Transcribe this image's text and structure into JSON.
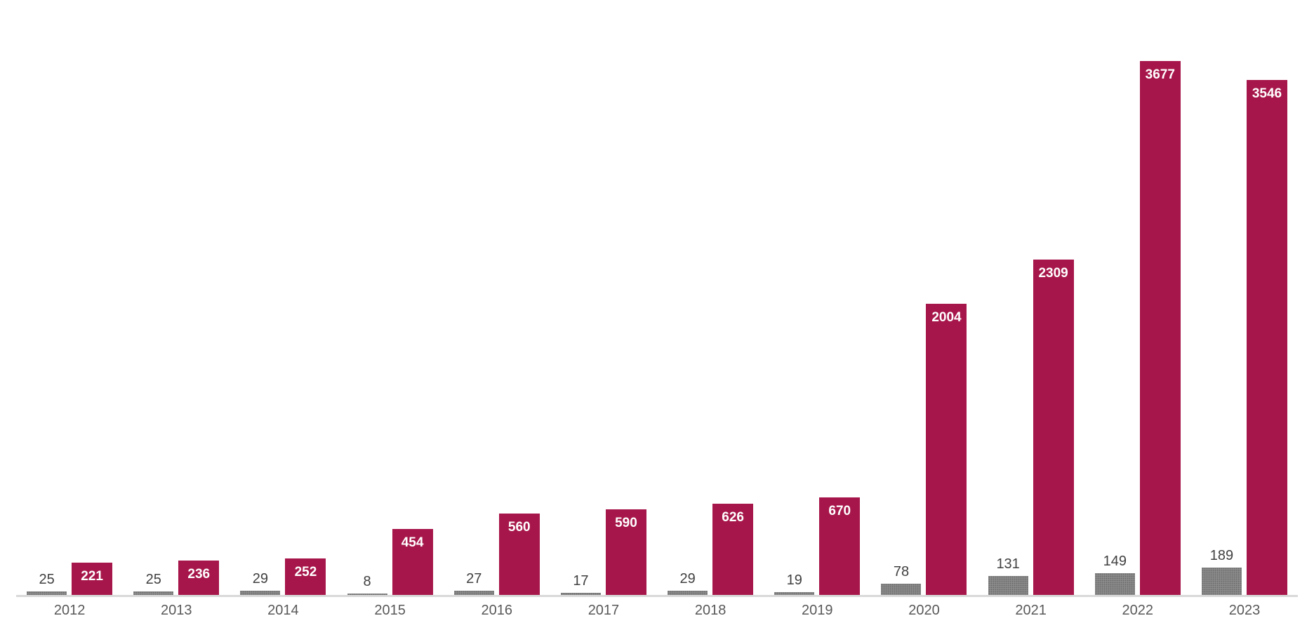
{
  "page": {
    "background_color": "#FFFFFF"
  },
  "chart_data": {
    "type": "bar",
    "title": "",
    "categories": [
      "2012",
      "2013",
      "2014",
      "2015",
      "2016",
      "2017",
      "2018",
      "2019",
      "2020",
      "2021",
      "2022",
      "2023"
    ],
    "series": [
      {
        "name": "gray",
        "color": "#8A8A8A",
        "label_color": "#404040",
        "label_position": "outside-end",
        "values": [
          25,
          25,
          29,
          8,
          27,
          17,
          29,
          19,
          78,
          131,
          149,
          189
        ]
      },
      {
        "name": "crimson",
        "color": "#A7164A",
        "label_color": "#FFFFFF",
        "label_position": "inside-end",
        "values": [
          221,
          236,
          252,
          454,
          560,
          590,
          626,
          670,
          2004,
          2309,
          3677,
          3546
        ]
      }
    ],
    "xlabel": "",
    "ylabel": "",
    "ylim": [
      0,
      3700
    ],
    "grid": false,
    "legend": false,
    "axis": {
      "baseline_color": "#D9D9D9",
      "tick_label_color": "#595959"
    }
  }
}
